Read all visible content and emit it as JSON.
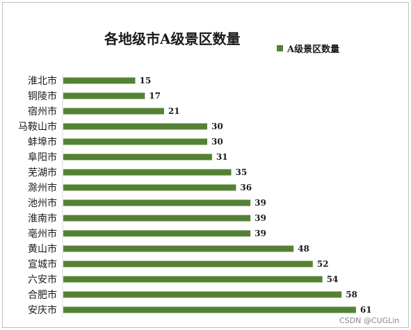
{
  "chart_data": {
    "type": "bar",
    "orientation": "horizontal",
    "title": "各地级市A级景区数量",
    "legend_position": "top-right",
    "grid": false,
    "xlim": [
      0,
      61
    ],
    "categories": [
      "淮北市",
      "铜陵市",
      "宿州市",
      "马鞍山市",
      "蚌埠市",
      "阜阳市",
      "芜湖市",
      "滁州市",
      "池州市",
      "淮南市",
      "亳州市",
      "黄山市",
      "宣城市",
      "六安市",
      "合肥市",
      "安庆市"
    ],
    "series": [
      {
        "name": "A级景区数量",
        "color": "#548235",
        "values": [
          15,
          17,
          21,
          30,
          30,
          31,
          35,
          36,
          39,
          39,
          39,
          48,
          52,
          54,
          58,
          61
        ]
      }
    ]
  },
  "watermark": "CSDN @CUGLin"
}
